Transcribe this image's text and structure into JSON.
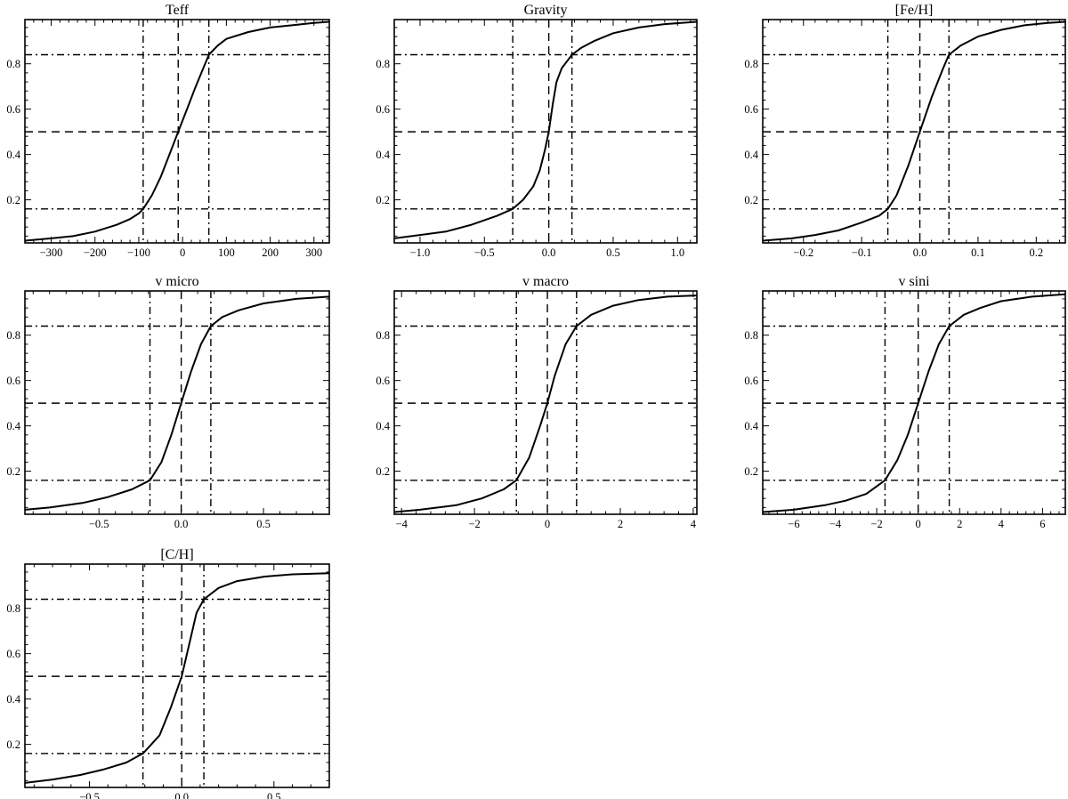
{
  "figure": {
    "panel_count": 7,
    "line_color": "#000000",
    "background": "#ffffff"
  },
  "chart_data": [
    {
      "type": "line",
      "title": "Teff",
      "xlim": [
        -360,
        335
      ],
      "ylim": [
        0.01,
        0.995
      ],
      "xticks": [
        -300,
        -200,
        -100,
        0,
        100,
        200,
        300
      ],
      "xtick_labels": [
        "−300",
        "−200",
        "−100",
        "0",
        "100",
        "200",
        "300"
      ],
      "yticks": [
        0.2,
        0.4,
        0.6,
        0.8
      ],
      "ytick_labels": [
        "0.2",
        "0.4",
        "0.6",
        "0.8"
      ],
      "hlines": [
        {
          "y": 0.16,
          "style": "dashdot"
        },
        {
          "y": 0.5,
          "style": "dashed"
        },
        {
          "y": 0.84,
          "style": "dashdot"
        }
      ],
      "vlines": [
        {
          "x": -90,
          "style": "dashdot"
        },
        {
          "x": -10,
          "style": "dashed"
        },
        {
          "x": 60,
          "style": "dashdot"
        }
      ],
      "x": [
        -360,
        -300,
        -250,
        -200,
        -150,
        -120,
        -100,
        -90,
        -70,
        -50,
        -30,
        -10,
        10,
        30,
        60,
        80,
        100,
        150,
        200,
        250,
        300,
        335
      ],
      "y": [
        0.02,
        0.03,
        0.04,
        0.06,
        0.09,
        0.115,
        0.14,
        0.16,
        0.22,
        0.3,
        0.4,
        0.5,
        0.6,
        0.7,
        0.84,
        0.88,
        0.91,
        0.94,
        0.96,
        0.97,
        0.98,
        0.985
      ]
    },
    {
      "type": "line",
      "title": "Gravity",
      "xlim": [
        -1.2,
        1.15
      ],
      "ylim": [
        0.01,
        0.995
      ],
      "xticks": [
        -1.0,
        -0.5,
        0.0,
        0.5,
        1.0
      ],
      "xtick_labels": [
        "−1.0",
        "−0.5",
        "0.0",
        "0.5",
        "1.0"
      ],
      "yticks": [
        0.2,
        0.4,
        0.6,
        0.8
      ],
      "ytick_labels": [
        "0.2",
        "0.4",
        "0.6",
        "0.8"
      ],
      "hlines": [
        {
          "y": 0.16,
          "style": "dashdot"
        },
        {
          "y": 0.5,
          "style": "dashed"
        },
        {
          "y": 0.84,
          "style": "dashdot"
        }
      ],
      "vlines": [
        {
          "x": -0.28,
          "style": "dashdot"
        },
        {
          "x": 0.0,
          "style": "dashed"
        },
        {
          "x": 0.18,
          "style": "dashdot"
        }
      ],
      "x": [
        -1.2,
        -1.0,
        -0.8,
        -0.6,
        -0.4,
        -0.28,
        -0.2,
        -0.12,
        -0.07,
        -0.03,
        0.0,
        0.03,
        0.06,
        0.1,
        0.18,
        0.25,
        0.35,
        0.5,
        0.7,
        0.9,
        1.15
      ],
      "y": [
        0.03,
        0.045,
        0.06,
        0.09,
        0.13,
        0.16,
        0.2,
        0.26,
        0.33,
        0.42,
        0.5,
        0.62,
        0.72,
        0.78,
        0.84,
        0.87,
        0.9,
        0.935,
        0.96,
        0.975,
        0.985
      ]
    },
    {
      "type": "line",
      "title": "[Fe/H]",
      "xlim": [
        -0.27,
        0.25
      ],
      "ylim": [
        0.01,
        0.995
      ],
      "xticks": [
        -0.2,
        -0.1,
        0.0,
        0.1,
        0.2
      ],
      "xtick_labels": [
        "−0.2",
        "−0.1",
        "0.0",
        "0.1",
        "0.2"
      ],
      "yticks": [
        0.2,
        0.4,
        0.6,
        0.8
      ],
      "ytick_labels": [
        "0.2",
        "0.4",
        "0.6",
        "0.8"
      ],
      "hlines": [
        {
          "y": 0.16,
          "style": "dashdot"
        },
        {
          "y": 0.5,
          "style": "dashed"
        },
        {
          "y": 0.84,
          "style": "dashdot"
        }
      ],
      "vlines": [
        {
          "x": -0.055,
          "style": "dashdot"
        },
        {
          "x": 0.0,
          "style": "dashed"
        },
        {
          "x": 0.05,
          "style": "dashdot"
        }
      ],
      "x": [
        -0.27,
        -0.22,
        -0.18,
        -0.14,
        -0.1,
        -0.07,
        -0.055,
        -0.04,
        -0.02,
        0.0,
        0.02,
        0.04,
        0.05,
        0.07,
        0.1,
        0.14,
        0.18,
        0.22,
        0.25
      ],
      "y": [
        0.02,
        0.03,
        0.045,
        0.065,
        0.1,
        0.13,
        0.16,
        0.22,
        0.35,
        0.5,
        0.65,
        0.78,
        0.84,
        0.88,
        0.92,
        0.95,
        0.97,
        0.98,
        0.985
      ]
    },
    {
      "type": "line",
      "title": "v micro",
      "xlim": [
        -0.95,
        0.9
      ],
      "ylim": [
        0.01,
        0.995
      ],
      "xticks": [
        -0.5,
        0.0,
        0.5
      ],
      "xtick_labels": [
        "−0.5",
        "0.0",
        "0.5"
      ],
      "yticks": [
        0.2,
        0.4,
        0.6,
        0.8
      ],
      "ytick_labels": [
        "0.2",
        "0.4",
        "0.6",
        "0.8"
      ],
      "hlines": [
        {
          "y": 0.16,
          "style": "dashdot"
        },
        {
          "y": 0.5,
          "style": "dashed"
        },
        {
          "y": 0.84,
          "style": "dashdot"
        }
      ],
      "vlines": [
        {
          "x": -0.19,
          "style": "dashdot"
        },
        {
          "x": 0.0,
          "style": "dashed"
        },
        {
          "x": 0.18,
          "style": "dashdot"
        }
      ],
      "x": [
        -0.95,
        -0.8,
        -0.6,
        -0.45,
        -0.3,
        -0.19,
        -0.12,
        -0.06,
        0.0,
        0.06,
        0.12,
        0.18,
        0.25,
        0.35,
        0.5,
        0.7,
        0.9
      ],
      "y": [
        0.03,
        0.04,
        0.06,
        0.085,
        0.12,
        0.16,
        0.24,
        0.36,
        0.5,
        0.64,
        0.76,
        0.84,
        0.88,
        0.91,
        0.94,
        0.96,
        0.97
      ]
    },
    {
      "type": "line",
      "title": "v macro",
      "xlim": [
        -4.2,
        4.1
      ],
      "ylim": [
        0.01,
        0.995
      ],
      "xticks": [
        -4,
        -2,
        0,
        2,
        4
      ],
      "xtick_labels": [
        "−4",
        "−2",
        "0",
        "2",
        "4"
      ],
      "yticks": [
        0.2,
        0.4,
        0.6,
        0.8
      ],
      "ytick_labels": [
        "0.2",
        "0.4",
        "0.6",
        "0.8"
      ],
      "hlines": [
        {
          "y": 0.16,
          "style": "dashdot"
        },
        {
          "y": 0.5,
          "style": "dashed"
        },
        {
          "y": 0.84,
          "style": "dashdot"
        }
      ],
      "vlines": [
        {
          "x": -0.85,
          "style": "dashdot"
        },
        {
          "x": 0.0,
          "style": "dashed"
        },
        {
          "x": 0.8,
          "style": "dashdot"
        }
      ],
      "x": [
        -4.2,
        -3.5,
        -2.5,
        -1.8,
        -1.2,
        -0.85,
        -0.5,
        -0.2,
        0.0,
        0.2,
        0.5,
        0.8,
        1.2,
        1.8,
        2.5,
        3.3,
        4.1
      ],
      "y": [
        0.02,
        0.03,
        0.05,
        0.08,
        0.12,
        0.16,
        0.26,
        0.4,
        0.5,
        0.62,
        0.76,
        0.84,
        0.89,
        0.93,
        0.955,
        0.97,
        0.975
      ]
    },
    {
      "type": "line",
      "title": "v sini",
      "xlim": [
        -7.5,
        7.1
      ],
      "ylim": [
        0.01,
        0.995
      ],
      "xticks": [
        -6,
        -4,
        -2,
        0,
        2,
        4,
        6
      ],
      "xtick_labels": [
        "−6",
        "−4",
        "−2",
        "0",
        "2",
        "4",
        "6"
      ],
      "yticks": [
        0.2,
        0.4,
        0.6,
        0.8
      ],
      "ytick_labels": [
        "0.2",
        "0.4",
        "0.6",
        "0.8"
      ],
      "hlines": [
        {
          "y": 0.16,
          "style": "dashdot"
        },
        {
          "y": 0.5,
          "style": "dashed"
        },
        {
          "y": 0.84,
          "style": "dashdot"
        }
      ],
      "vlines": [
        {
          "x": -1.6,
          "style": "dashdot"
        },
        {
          "x": 0.0,
          "style": "dashed"
        },
        {
          "x": 1.5,
          "style": "dashdot"
        }
      ],
      "x": [
        -7.5,
        -6,
        -4.5,
        -3.5,
        -2.5,
        -1.6,
        -1.0,
        -0.5,
        0.0,
        0.5,
        1.0,
        1.5,
        2.2,
        3,
        4,
        5.5,
        7.1
      ],
      "y": [
        0.02,
        0.03,
        0.05,
        0.07,
        0.1,
        0.16,
        0.25,
        0.36,
        0.5,
        0.64,
        0.76,
        0.84,
        0.89,
        0.92,
        0.95,
        0.97,
        0.98
      ]
    },
    {
      "type": "line",
      "title": "[C/H]",
      "xlim": [
        -0.85,
        0.8
      ],
      "ylim": [
        0.01,
        0.995
      ],
      "xticks": [
        -0.5,
        0.0,
        0.5
      ],
      "xtick_labels": [
        "−0.5",
        "0.0",
        "0.5"
      ],
      "yticks": [
        0.2,
        0.4,
        0.6,
        0.8
      ],
      "ytick_labels": [
        "0.2",
        "0.4",
        "0.6",
        "0.8"
      ],
      "hlines": [
        {
          "y": 0.16,
          "style": "dashdot"
        },
        {
          "y": 0.5,
          "style": "dashed"
        },
        {
          "y": 0.84,
          "style": "dashdot"
        }
      ],
      "vlines": [
        {
          "x": -0.21,
          "style": "dashdot"
        },
        {
          "x": 0.0,
          "style": "dashed"
        },
        {
          "x": 0.12,
          "style": "dashdot"
        }
      ],
      "x": [
        -0.85,
        -0.7,
        -0.55,
        -0.42,
        -0.3,
        -0.21,
        -0.12,
        -0.06,
        0.0,
        0.04,
        0.08,
        0.12,
        0.2,
        0.3,
        0.45,
        0.6,
        0.8
      ],
      "y": [
        0.03,
        0.045,
        0.065,
        0.09,
        0.12,
        0.16,
        0.24,
        0.36,
        0.5,
        0.64,
        0.78,
        0.84,
        0.89,
        0.92,
        0.94,
        0.95,
        0.955
      ]
    }
  ]
}
